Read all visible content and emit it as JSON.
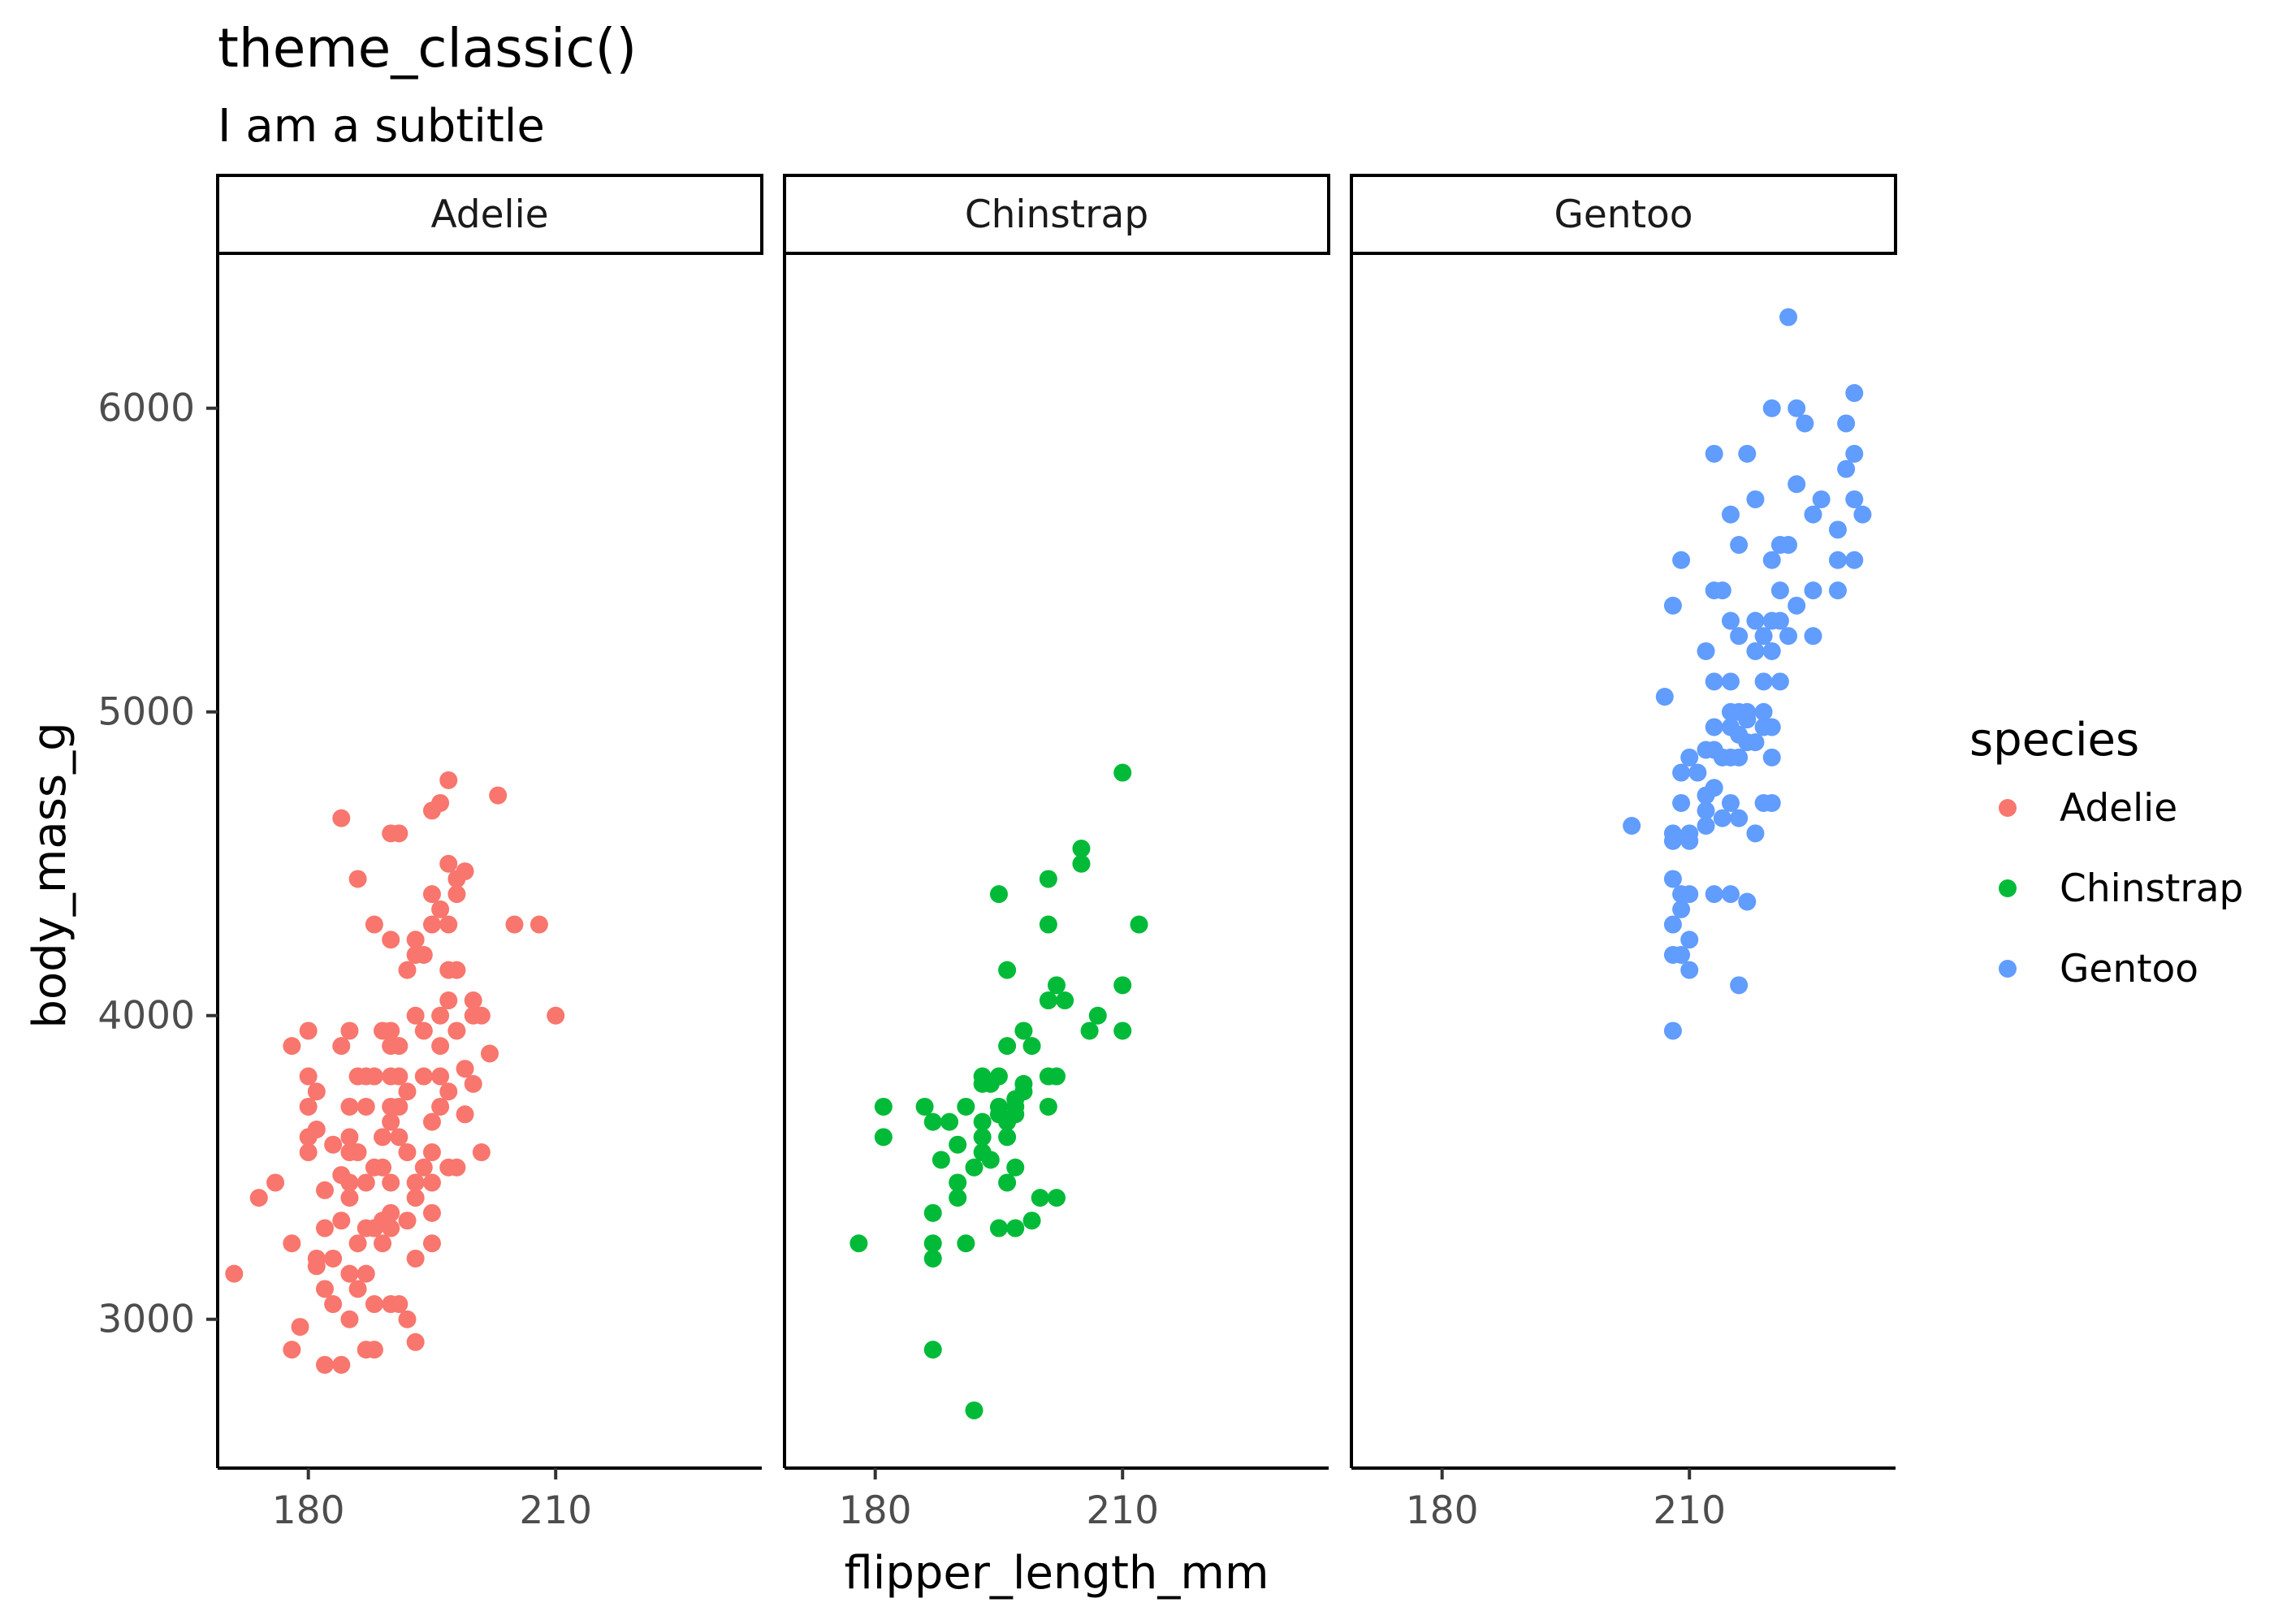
{
  "chart_data": {
    "type": "scatter",
    "title": "theme_classic()",
    "subtitle": "I am a subtitle",
    "xlabel": "flipper_length_mm",
    "ylabel": "body_mass_g",
    "xlim": [
      169,
      235
    ],
    "ylim": [
      2510,
      6510
    ],
    "x_ticks": [
      180,
      210
    ],
    "y_ticks": [
      3000,
      4000,
      5000,
      6000
    ],
    "grid": false,
    "legend": {
      "title": "species",
      "position": "right"
    },
    "facets": [
      "Adelie",
      "Chinstrap",
      "Gentoo"
    ],
    "series": [
      {
        "name": "Adelie",
        "color": "#F8766D",
        "points": [
          [
            171,
            3150
          ],
          [
            174,
            3400
          ],
          [
            176,
            3450
          ],
          [
            178,
            3250
          ],
          [
            178,
            3900
          ],
          [
            178,
            2900
          ],
          [
            179,
            2975
          ],
          [
            180,
            3800
          ],
          [
            180,
            3950
          ],
          [
            180,
            3700
          ],
          [
            180,
            3600
          ],
          [
            180,
            3550
          ],
          [
            181,
            3625
          ],
          [
            181,
            3750
          ],
          [
            181,
            3200
          ],
          [
            181,
            3175
          ],
          [
            182,
            3300
          ],
          [
            182,
            3100
          ],
          [
            182,
            2850
          ],
          [
            182,
            3425
          ],
          [
            183,
            3575
          ],
          [
            183,
            3200
          ],
          [
            183,
            3050
          ],
          [
            184,
            4650
          ],
          [
            184,
            3900
          ],
          [
            184,
            3475
          ],
          [
            184,
            3325
          ],
          [
            184,
            2850
          ],
          [
            185,
            3550
          ],
          [
            185,
            3700
          ],
          [
            185,
            3600
          ],
          [
            185,
            3450
          ],
          [
            185,
            3400
          ],
          [
            185,
            3000
          ],
          [
            185,
            3150
          ],
          [
            185,
            3950
          ],
          [
            186,
            3800
          ],
          [
            186,
            4450
          ],
          [
            186,
            3250
          ],
          [
            186,
            3550
          ],
          [
            186,
            3100
          ],
          [
            187,
            3450
          ],
          [
            187,
            3300
          ],
          [
            187,
            3700
          ],
          [
            187,
            3800
          ],
          [
            187,
            2900
          ],
          [
            187,
            3150
          ],
          [
            188,
            2900
          ],
          [
            188,
            3050
          ],
          [
            188,
            3800
          ],
          [
            188,
            4300
          ],
          [
            188,
            3300
          ],
          [
            188,
            3500
          ],
          [
            189,
            3500
          ],
          [
            189,
            3250
          ],
          [
            189,
            3950
          ],
          [
            189,
            3325
          ],
          [
            189,
            3600
          ],
          [
            190,
            3800
          ],
          [
            190,
            3950
          ],
          [
            190,
            3300
          ],
          [
            190,
            3050
          ],
          [
            190,
            4600
          ],
          [
            190,
            3650
          ],
          [
            190,
            4250
          ],
          [
            190,
            3900
          ],
          [
            190,
            3450
          ],
          [
            190,
            3700
          ],
          [
            190,
            3350
          ],
          [
            191,
            3600
          ],
          [
            191,
            3900
          ],
          [
            191,
            4600
          ],
          [
            191,
            3050
          ],
          [
            191,
            3800
          ],
          [
            191,
            3700
          ],
          [
            192,
            3000
          ],
          [
            192,
            3550
          ],
          [
            192,
            4150
          ],
          [
            192,
            3750
          ],
          [
            192,
            3325
          ],
          [
            193,
            4000
          ],
          [
            193,
            3450
          ],
          [
            193,
            3400
          ],
          [
            193,
            3200
          ],
          [
            193,
            2925
          ],
          [
            193,
            4250
          ],
          [
            193,
            4200
          ],
          [
            194,
            4200
          ],
          [
            194,
            3500
          ],
          [
            194,
            3800
          ],
          [
            194,
            3950
          ],
          [
            195,
            3350
          ],
          [
            195,
            3650
          ],
          [
            195,
            3550
          ],
          [
            195,
            4300
          ],
          [
            195,
            3250
          ],
          [
            195,
            4400
          ],
          [
            195,
            3450
          ],
          [
            195,
            4675
          ],
          [
            196,
            4350
          ],
          [
            196,
            3900
          ],
          [
            196,
            3700
          ],
          [
            196,
            4700
          ],
          [
            196,
            4000
          ],
          [
            196,
            3800
          ],
          [
            197,
            4150
          ],
          [
            197,
            4775
          ],
          [
            197,
            4500
          ],
          [
            197,
            3500
          ],
          [
            197,
            3750
          ],
          [
            197,
            4300
          ],
          [
            197,
            4050
          ],
          [
            198,
            4400
          ],
          [
            198,
            4150
          ],
          [
            198,
            3500
          ],
          [
            198,
            3950
          ],
          [
            198,
            4450
          ],
          [
            199,
            4475
          ],
          [
            199,
            3675
          ],
          [
            199,
            3825
          ],
          [
            200,
            4050
          ],
          [
            200,
            4000
          ],
          [
            200,
            3775
          ],
          [
            201,
            4000
          ],
          [
            201,
            3550
          ],
          [
            202,
            3875
          ],
          [
            203,
            4725
          ],
          [
            205,
            4300
          ],
          [
            208,
            4300
          ],
          [
            210,
            4000
          ]
        ]
      },
      {
        "name": "Chinstrap",
        "color": "#00BA38",
        "points": [
          [
            178,
            3250
          ],
          [
            181,
            3600
          ],
          [
            181,
            3700
          ],
          [
            186,
            3700
          ],
          [
            187,
            3650
          ],
          [
            187,
            3200
          ],
          [
            187,
            2900
          ],
          [
            187,
            3250
          ],
          [
            187,
            3350
          ],
          [
            188,
            3525
          ],
          [
            189,
            3650
          ],
          [
            190,
            3575
          ],
          [
            190,
            3450
          ],
          [
            190,
            3400
          ],
          [
            191,
            3700
          ],
          [
            191,
            3250
          ],
          [
            192,
            3500
          ],
          [
            192,
            2700
          ],
          [
            193,
            3800
          ],
          [
            193,
            3650
          ],
          [
            193,
            3600
          ],
          [
            193,
            3775
          ],
          [
            193,
            3550
          ],
          [
            194,
            3525
          ],
          [
            194,
            3775
          ],
          [
            195,
            3800
          ],
          [
            195,
            4400
          ],
          [
            195,
            3300
          ],
          [
            195,
            3675
          ],
          [
            195,
            3700
          ],
          [
            196,
            3450
          ],
          [
            196,
            3900
          ],
          [
            196,
            3600
          ],
          [
            196,
            4150
          ],
          [
            196,
            3650
          ],
          [
            197,
            3300
          ],
          [
            197,
            3500
          ],
          [
            197,
            3700
          ],
          [
            197,
            3725
          ],
          [
            197,
            3675
          ],
          [
            198,
            3750
          ],
          [
            198,
            3775
          ],
          [
            198,
            3950
          ],
          [
            199,
            3325
          ],
          [
            199,
            3900
          ],
          [
            200,
            3400
          ],
          [
            201,
            3800
          ],
          [
            201,
            3700
          ],
          [
            201,
            4050
          ],
          [
            201,
            4300
          ],
          [
            201,
            4450
          ],
          [
            202,
            3400
          ],
          [
            202,
            3800
          ],
          [
            202,
            4100
          ],
          [
            203,
            4050
          ],
          [
            205,
            4550
          ],
          [
            205,
            4500
          ],
          [
            206,
            3950
          ],
          [
            207,
            4000
          ],
          [
            210,
            4800
          ],
          [
            210,
            4100
          ],
          [
            210,
            3950
          ],
          [
            212,
            4300
          ]
        ]
      },
      {
        "name": "Gentoo",
        "color": "#619CFF",
        "points": [
          [
            203,
            4625
          ],
          [
            207,
            5050
          ],
          [
            208,
            5350
          ],
          [
            208,
            4600
          ],
          [
            208,
            4575
          ],
          [
            208,
            4450
          ],
          [
            208,
            4300
          ],
          [
            208,
            4200
          ],
          [
            208,
            3950
          ],
          [
            209,
            5500
          ],
          [
            209,
            4800
          ],
          [
            209,
            4400
          ],
          [
            209,
            4350
          ],
          [
            209,
            4700
          ],
          [
            209,
            4200
          ],
          [
            210,
            4850
          ],
          [
            210,
            4575
          ],
          [
            210,
            4400
          ],
          [
            210,
            4600
          ],
          [
            210,
            4250
          ],
          [
            210,
            4150
          ],
          [
            211,
            4800
          ],
          [
            212,
            4875
          ],
          [
            212,
            4725
          ],
          [
            212,
            4675
          ],
          [
            212,
            5200
          ],
          [
            212,
            4625
          ],
          [
            213,
            5400
          ],
          [
            213,
            4750
          ],
          [
            213,
            5850
          ],
          [
            213,
            5100
          ],
          [
            213,
            4950
          ],
          [
            213,
            4875
          ],
          [
            213,
            4400
          ],
          [
            214,
            5400
          ],
          [
            214,
            4650
          ],
          [
            214,
            4850
          ],
          [
            215,
            5650
          ],
          [
            215,
            4950
          ],
          [
            215,
            5000
          ],
          [
            215,
            5300
          ],
          [
            215,
            4850
          ],
          [
            215,
            4700
          ],
          [
            215,
            5100
          ],
          [
            215,
            4400
          ],
          [
            216,
            5000
          ],
          [
            216,
            5550
          ],
          [
            216,
            4925
          ],
          [
            216,
            5250
          ],
          [
            216,
            4650
          ],
          [
            216,
            4100
          ],
          [
            216,
            4850
          ],
          [
            217,
            5850
          ],
          [
            217,
            5000
          ],
          [
            217,
            4375
          ],
          [
            217,
            4975
          ],
          [
            217,
            4900
          ],
          [
            218,
            5700
          ],
          [
            218,
            5200
          ],
          [
            218,
            4900
          ],
          [
            218,
            4600
          ],
          [
            218,
            5300
          ],
          [
            219,
            5250
          ],
          [
            219,
            4950
          ],
          [
            219,
            5100
          ],
          [
            219,
            5000
          ],
          [
            219,
            4700
          ],
          [
            220,
            5500
          ],
          [
            220,
            5200
          ],
          [
            220,
            5300
          ],
          [
            220,
            4950
          ],
          [
            220,
            4700
          ],
          [
            220,
            4850
          ],
          [
            220,
            6000
          ],
          [
            221,
            5550
          ],
          [
            221,
            5400
          ],
          [
            221,
            5100
          ],
          [
            221,
            5300
          ],
          [
            222,
            5250
          ],
          [
            222,
            6300
          ],
          [
            222,
            5550
          ],
          [
            223,
            6000
          ],
          [
            223,
            5750
          ],
          [
            223,
            5350
          ],
          [
            224,
            5950
          ],
          [
            225,
            5250
          ],
          [
            225,
            5400
          ],
          [
            225,
            5650
          ],
          [
            226,
            5700
          ],
          [
            228,
            5400
          ],
          [
            228,
            5600
          ],
          [
            228,
            5500
          ],
          [
            229,
            5950
          ],
          [
            229,
            5800
          ],
          [
            230,
            5850
          ],
          [
            230,
            5500
          ],
          [
            230,
            5700
          ],
          [
            230,
            6050
          ],
          [
            231,
            5650
          ]
        ]
      }
    ]
  }
}
